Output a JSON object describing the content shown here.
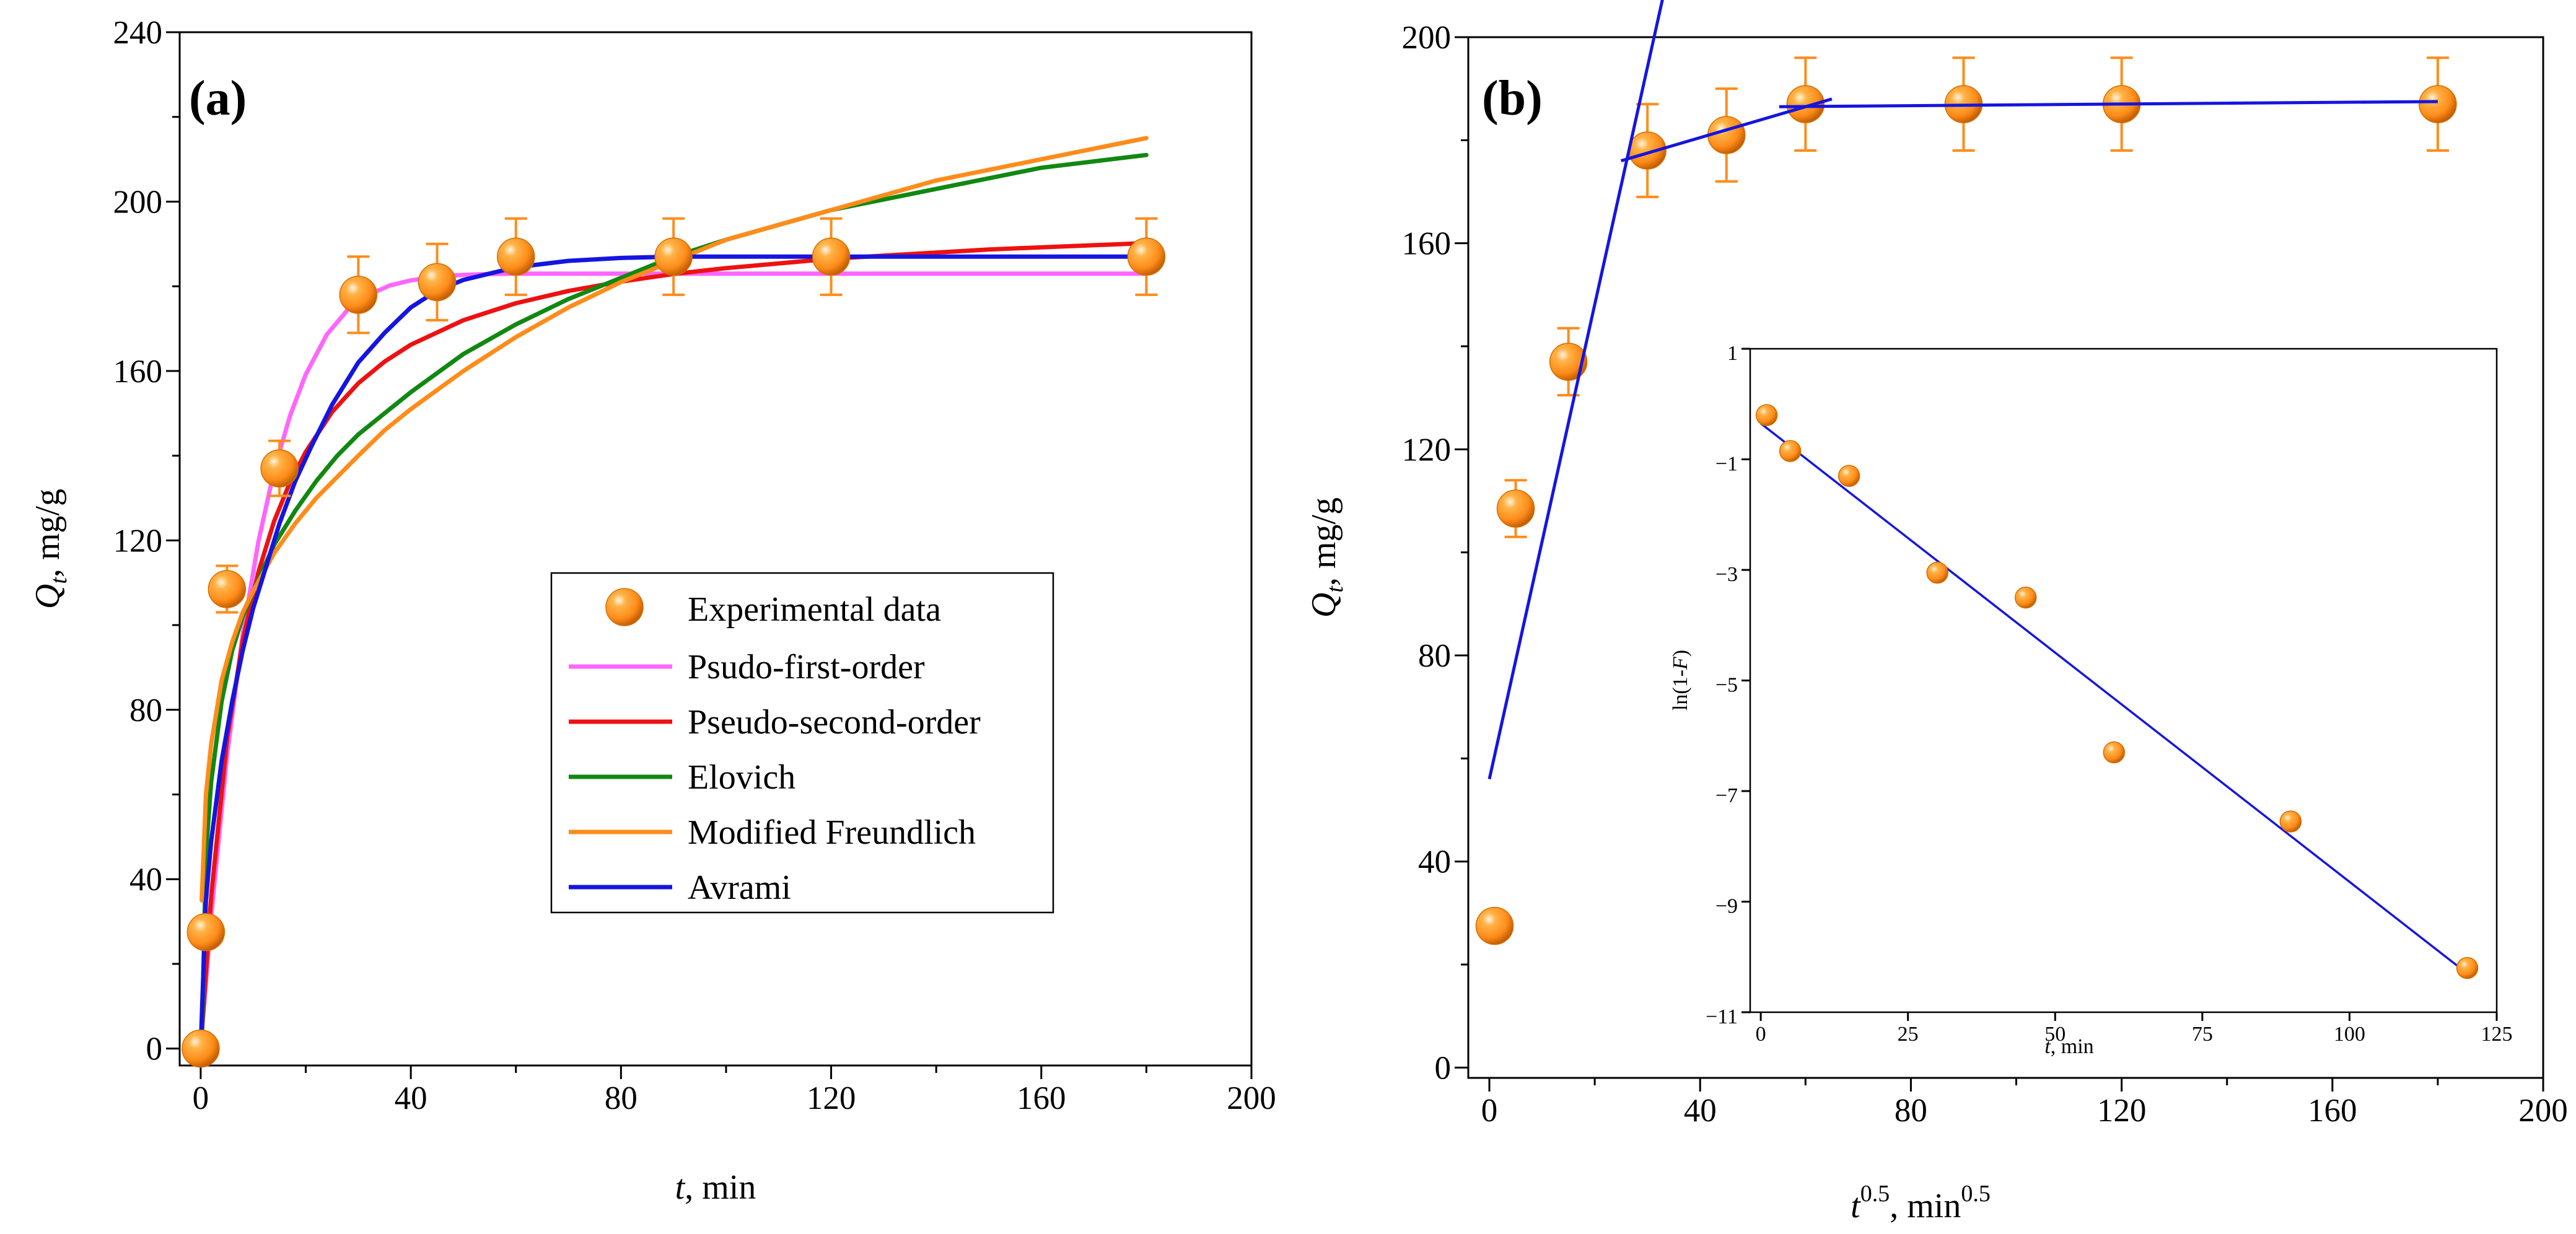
{
  "chart_data": [
    {
      "type": "line",
      "panel_label": "(a)",
      "xlabel_var": "t",
      "xlabel_unit": ", min",
      "ylabel_var": "Q",
      "ylabel_sub": "t",
      "ylabel_unit": ", mg/g",
      "xlim": [
        0,
        200
      ],
      "ylim": [
        0,
        240
      ],
      "xticks": [
        "0",
        "40",
        "80",
        "120",
        "160",
        "200"
      ],
      "yticks": [
        "0",
        "40",
        "80",
        "120",
        "160",
        "200",
        "240"
      ],
      "legend": {
        "position": "center-right",
        "experimental_label": "Experimental data",
        "entries": [
          {
            "name": "Psudo-first-order",
            "color": "#ff66ff"
          },
          {
            "name": "Pseudo-second-order",
            "color": "#ee1111"
          },
          {
            "name": "Elovich",
            "color": "#118811"
          },
          {
            "name": "Modified Freundlich",
            "color": "#ff8c1a"
          },
          {
            "name": "Avrami",
            "color": "#1515e0"
          }
        ]
      },
      "experimental": {
        "x": [
          0,
          1,
          5,
          15,
          30,
          45,
          60,
          90,
          120,
          180
        ],
        "y": [
          0,
          27.5,
          108.5,
          137,
          178,
          181,
          187,
          187,
          187,
          187
        ],
        "err": [
          0,
          0,
          5.5,
          6.5,
          9,
          9,
          9,
          9,
          9,
          9
        ],
        "color": "#ff8c1a"
      },
      "curves": [
        {
          "name": "Psudo-first-order",
          "x": [
            0,
            2,
            5,
            8,
            11,
            14,
            17,
            20,
            24,
            28,
            32,
            36,
            40,
            45,
            50,
            55,
            60,
            70,
            80,
            90,
            120,
            150,
            180
          ],
          "y": [
            0,
            31.3,
            69,
            97.8,
            119.8,
            136.6,
            149.4,
            159.2,
            168.6,
            174.5,
            178,
            180.2,
            181.4,
            182.3,
            182.7,
            182.9,
            183,
            183,
            183,
            183,
            183,
            183,
            183
          ]
        },
        {
          "name": "Pseudo-second-order",
          "x": [
            0,
            2,
            5,
            8,
            11,
            14,
            17,
            20,
            25,
            30,
            35,
            40,
            50,
            60,
            70,
            80,
            90,
            100,
            120,
            150,
            180
          ],
          "y": [
            0,
            36,
            72.9,
            96.4,
            112.6,
            124.6,
            133.7,
            140.9,
            150.3,
            157.1,
            162.2,
            166.2,
            172,
            176,
            178.9,
            181.1,
            182.9,
            184.3,
            186.5,
            188.7,
            190.2
          ]
        },
        {
          "name": "Elovich",
          "x": [
            0.2,
            1,
            2,
            4,
            6,
            8,
            10,
            14,
            18,
            22,
            26,
            30,
            35,
            40,
            50,
            60,
            70,
            80,
            90,
            100,
            120,
            140,
            160,
            180
          ],
          "y": [
            0,
            46,
            63,
            82,
            94,
            102,
            108,
            119,
            127,
            134,
            140,
            145,
            150,
            155,
            164,
            171,
            177,
            182,
            187,
            191,
            198,
            203,
            208,
            211
          ]
        },
        {
          "name": "Modified Freundlich",
          "x": [
            0.2,
            1,
            2,
            4,
            6,
            8,
            10,
            14,
            18,
            22,
            26,
            30,
            35,
            40,
            50,
            60,
            70,
            80,
            90,
            100,
            120,
            140,
            160,
            180
          ],
          "y": [
            35,
            60,
            72,
            87,
            96,
            103,
            108,
            117,
            124,
            130,
            135,
            140,
            146,
            151,
            160,
            168,
            175,
            181,
            186,
            191,
            198,
            205,
            210,
            215
          ]
        },
        {
          "name": "Avrami",
          "x": [
            0,
            1,
            2,
            4,
            6,
            8,
            10,
            12,
            15,
            18,
            21,
            25,
            30,
            35,
            40,
            45,
            50,
            60,
            70,
            80,
            90,
            120,
            150,
            180
          ],
          "y": [
            0,
            35,
            49,
            68,
            82,
            94,
            104,
            112,
            124,
            134,
            142,
            152,
            162,
            169,
            175,
            179,
            181.5,
            184.5,
            186,
            186.7,
            187,
            187,
            187,
            187
          ]
        }
      ]
    },
    {
      "type": "scatter",
      "panel_label": "(b)",
      "xlabel_var": "t",
      "xlabel_sup": "0.5",
      "xlabel_unit": ", min",
      "xlabel_unit_sup": "0.5",
      "ylabel_var": "Q",
      "ylabel_sub": "t",
      "ylabel_unit": ", mg/g",
      "xlim": [
        0,
        200
      ],
      "ylim": [
        0,
        200
      ],
      "xticks": [
        "0",
        "40",
        "80",
        "120",
        "160",
        "200"
      ],
      "yticks": [
        "0",
        "40",
        "80",
        "120",
        "160",
        "200"
      ],
      "experimental": {
        "x": [
          1,
          5,
          15,
          30,
          45,
          60,
          90,
          120,
          180
        ],
        "y": [
          27.5,
          108.5,
          137,
          178,
          181,
          187,
          187,
          187,
          187
        ],
        "err": [
          0,
          5.5,
          6.5,
          9,
          9,
          9,
          9,
          9,
          9
        ],
        "color": "#ff8c1a"
      },
      "fit_lines": [
        {
          "x": [
            0,
            33
          ],
          "y": [
            56,
            208
          ],
          "color": "#1515e0"
        },
        {
          "x": [
            25,
            65
          ],
          "y": [
            176,
            188
          ],
          "color": "#1515e0"
        },
        {
          "x": [
            55,
            180
          ],
          "y": [
            186.5,
            187.5
          ],
          "color": "#1515e0"
        }
      ],
      "inset": {
        "type": "scatter",
        "xlabel_var": "t",
        "xlabel_unit": ", min",
        "ylabel_pre": "ln(1-",
        "ylabel_var": "F",
        "ylabel_post": ")",
        "xlim": [
          0,
          125
        ],
        "ylim": [
          -11,
          1
        ],
        "xticks": [
          "0",
          "25",
          "50",
          "75",
          "100",
          "125"
        ],
        "yticks": [
          "1",
          "−1",
          "−3",
          "−5",
          "−7",
          "−9",
          "−11"
        ],
        "points": {
          "x": [
            1,
            5,
            15,
            30,
            45,
            60,
            90,
            120
          ],
          "y": [
            -0.2,
            -0.85,
            -1.3,
            -3.05,
            -3.5,
            -6.3,
            -7.55,
            -10.2
          ]
        },
        "fit_line": {
          "x": [
            0,
            120
          ],
          "y": [
            -0.35,
            -10.3
          ]
        },
        "point_color": "#ff8c1a",
        "line_color": "#1515e0"
      }
    }
  ]
}
